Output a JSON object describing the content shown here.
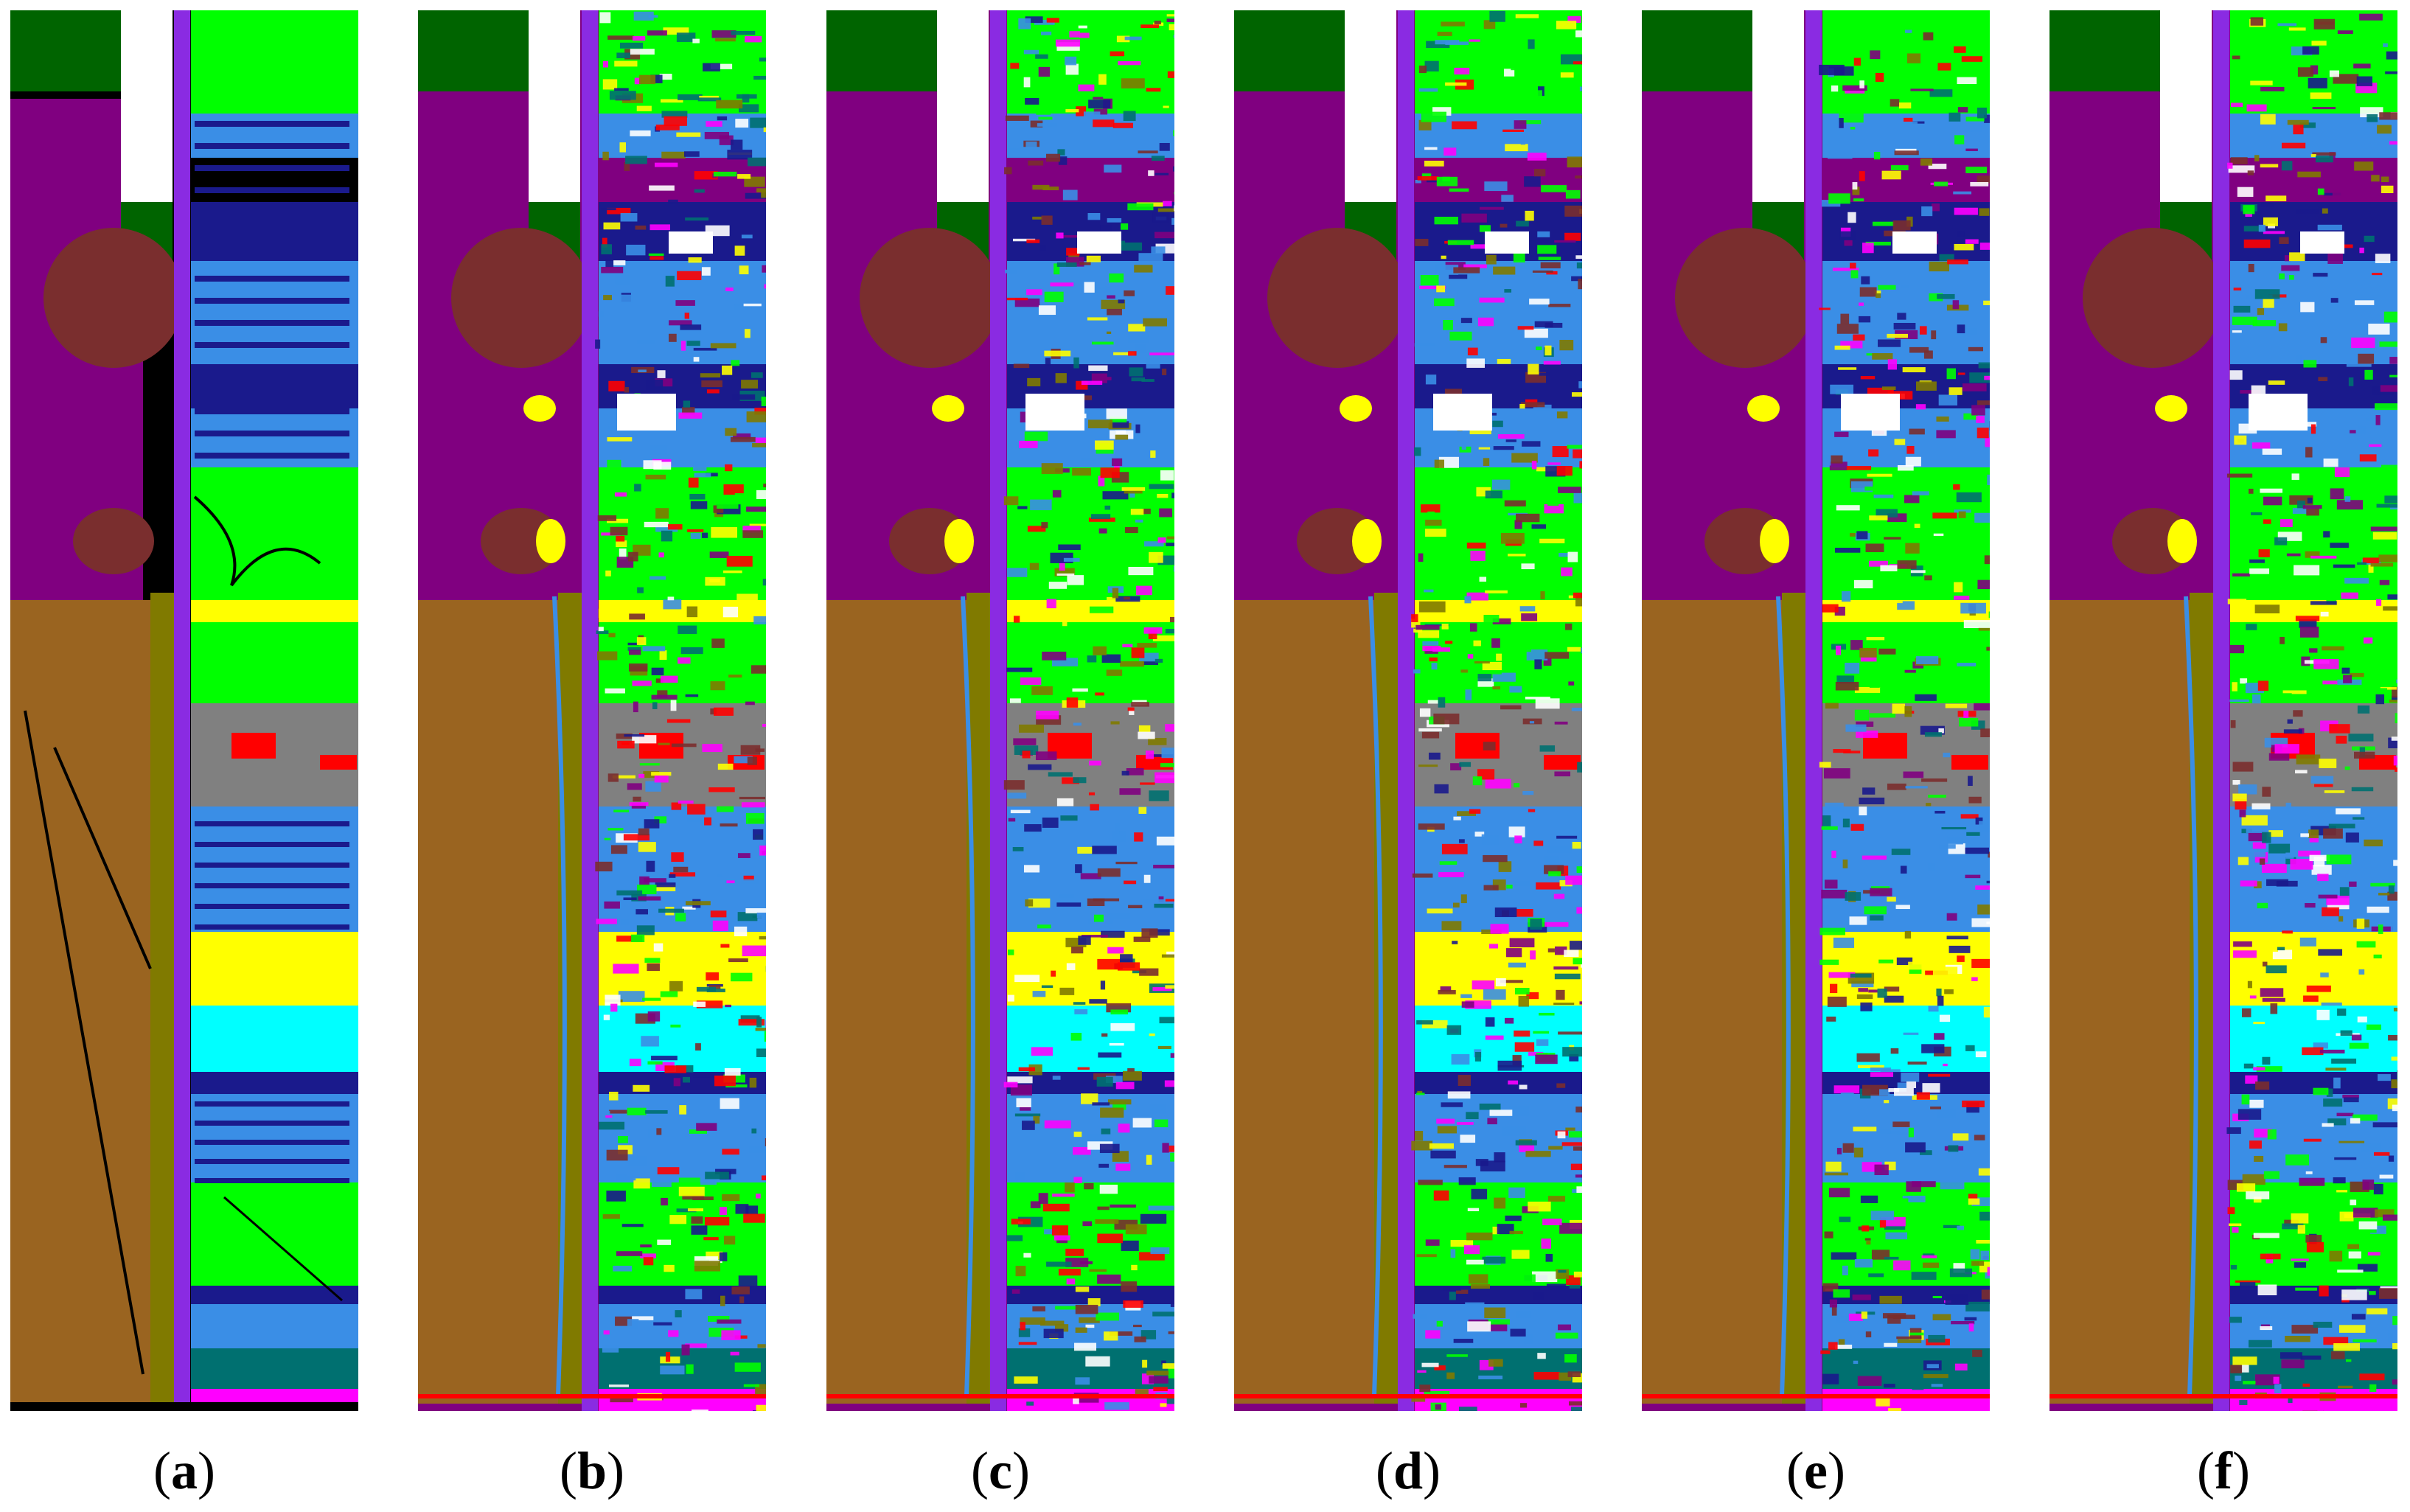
{
  "panels": [
    {
      "id": "a",
      "caption": "a",
      "kind": "ground-truth"
    },
    {
      "id": "b",
      "caption": "b",
      "kind": "classification"
    },
    {
      "id": "c",
      "caption": "c",
      "kind": "classification"
    },
    {
      "id": "d",
      "caption": "d",
      "kind": "classification"
    },
    {
      "id": "e",
      "caption": "e",
      "kind": "classification"
    },
    {
      "id": "f",
      "caption": "f",
      "kind": "classification"
    }
  ],
  "caption_format": {
    "open": "(",
    "close": ")"
  },
  "class_colors": {
    "background": "#000000",
    "dark_green": "#006400",
    "purple": "#800080",
    "white": "#ffffff",
    "violet_road": "#8a2be2",
    "bright_green": "#00ff00",
    "blue": "#3a8ee6",
    "navy": "#1a1a8c",
    "brown": "#7a2e2e",
    "tan": "#9a6420",
    "olive": "#807a00",
    "yellow": "#ffff00",
    "cyan": "#00ffff",
    "red": "#ff0000",
    "gray": "#808080",
    "teal": "#007070",
    "magenta": "#ff00ff"
  }
}
